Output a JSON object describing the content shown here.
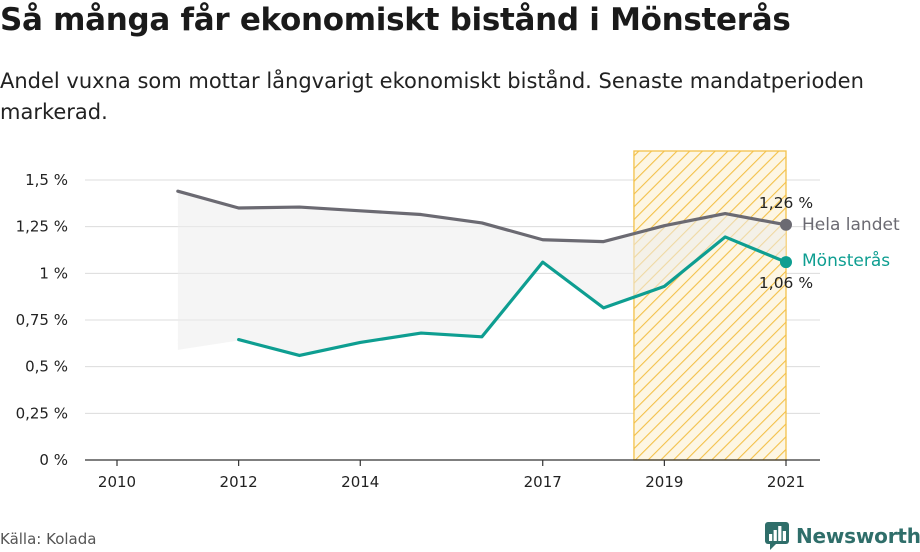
{
  "header": {
    "title": "Så många får ekonomiskt bistånd i Mönsterås",
    "subtitle": "Andel vuxna som mottar långvarigt ekonomiskt bistånd. Senaste mandatperioden markerad."
  },
  "footer": {
    "source": "Källa: Kolada",
    "brand": "Newsworthy"
  },
  "colors": {
    "national": "#6b6a72",
    "local": "#0e9e91",
    "highlight": "#f3c14a",
    "band": "#ececec",
    "brand": "#2f6e6a"
  },
  "chart_data": {
    "type": "line",
    "x": [
      2011,
      2012,
      2013,
      2014,
      2015,
      2016,
      2017,
      2018,
      2019,
      2020,
      2021
    ],
    "xlim": [
      2010,
      2021.5
    ],
    "x_tick_labels": [
      "2010",
      "2012",
      "2014",
      "2017",
      "2019",
      "2021"
    ],
    "x_tick_values": [
      2010,
      2012,
      2014,
      2017,
      2019,
      2021
    ],
    "ylim": [
      0,
      1.5
    ],
    "y_tick_values": [
      0,
      0.25,
      0.5,
      0.75,
      1,
      1.25,
      1.5
    ],
    "y_tick_labels": [
      "0 %",
      "0,25 %",
      "0,5 %",
      "0,75 %",
      "1 %",
      "1,25 %",
      "1,5 %"
    ],
    "grid": true,
    "highlight_period": [
      2018.5,
      2021
    ],
    "band_lower": [
      0.59,
      0.64
    ],
    "series": [
      {
        "name": "Hela landet",
        "key": "national",
        "values": [
          1.44,
          1.35,
          1.355,
          1.335,
          1.315,
          1.27,
          1.18,
          1.17,
          1.255,
          1.32,
          1.26
        ],
        "end_label": "1,26 %"
      },
      {
        "name": "Mönsterås",
        "key": "local",
        "values": [
          null,
          0.645,
          0.56,
          0.63,
          0.68,
          0.66,
          1.06,
          0.815,
          0.93,
          1.195,
          1.06
        ],
        "end_label": "1,06 %"
      }
    ]
  }
}
